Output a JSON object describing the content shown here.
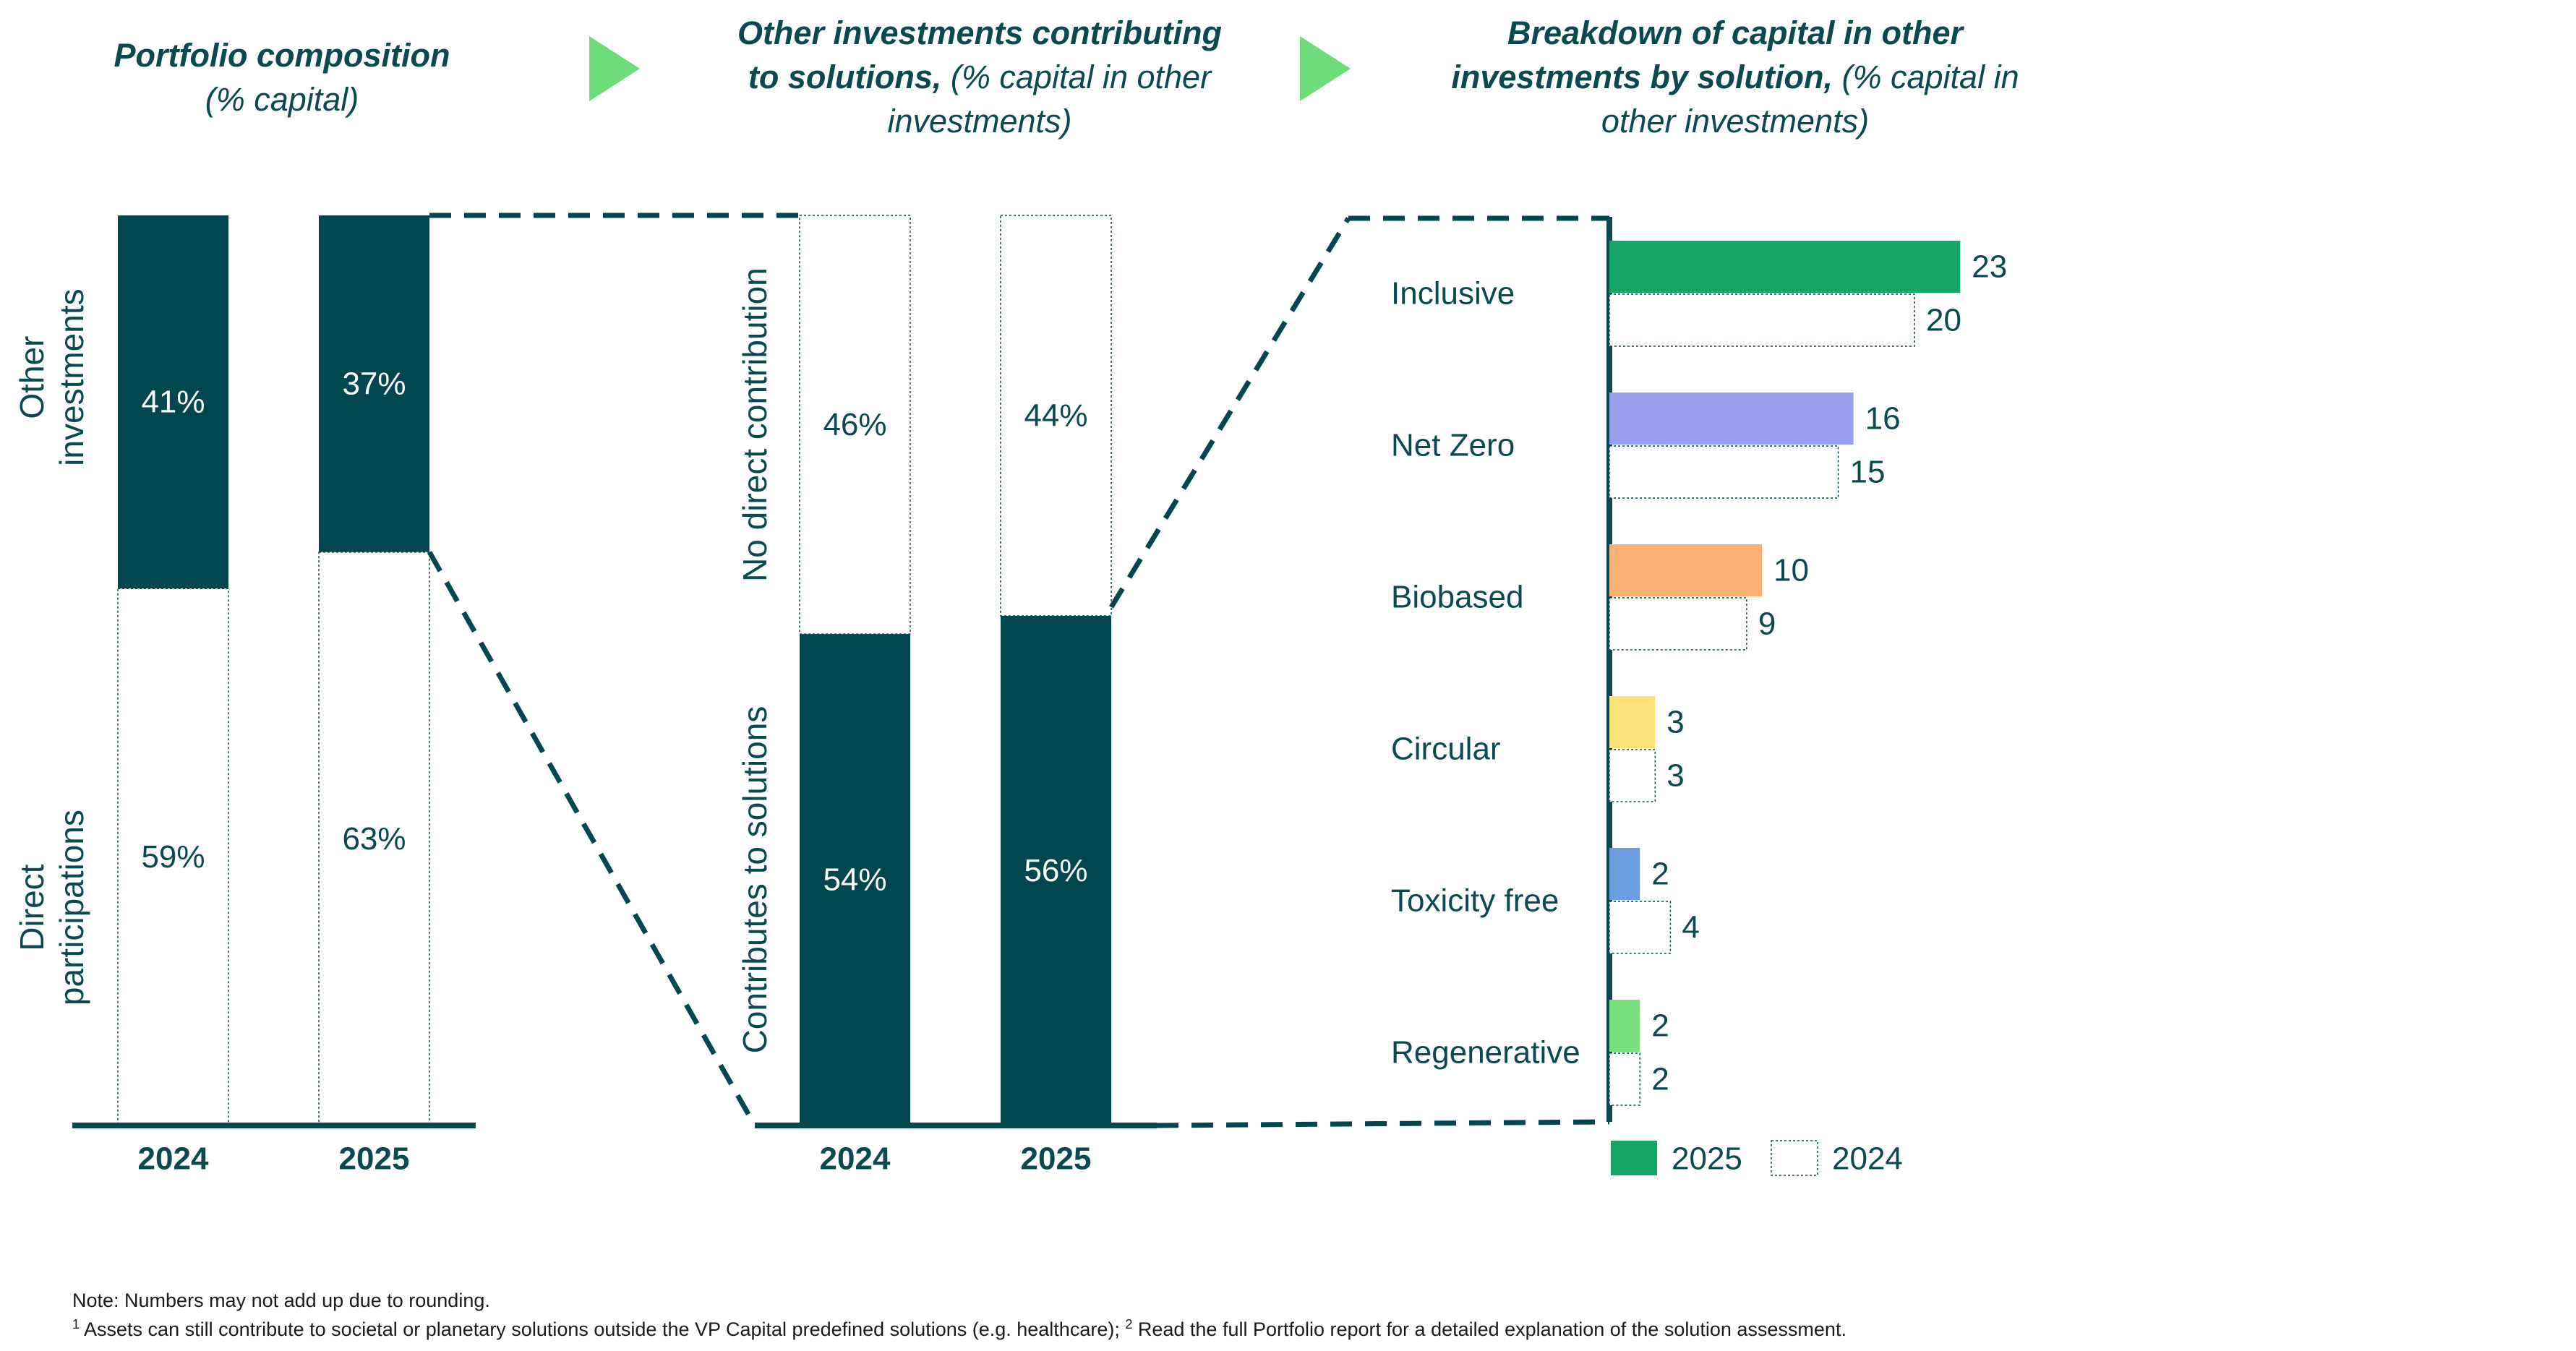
{
  "headers": {
    "portfolio": {
      "bold": "Portfolio composition",
      "sub": "(% capital)"
    },
    "other": {
      "bold1": "Other investments contributing",
      "bold2": "to solutions,",
      "sub1": " (% capital in other",
      "sub2": "investments)"
    },
    "breakdown": {
      "bold1": "Breakdown of capital in other",
      "bold2": "investments by solution,",
      "sub1": " (% capital in",
      "sub2": "other investments)"
    }
  },
  "colors": {
    "dark_teal": "#02464f",
    "axis": "#0a4a4f",
    "arrow": "#6fdc7c",
    "inclusive": "#15a566",
    "net_zero": "#9aa0f0",
    "biobased": "#fdb174",
    "circular": "#fde277",
    "toxicity_free": "#6b9ee0",
    "regenerative": "#78e07e"
  },
  "chart_data": [
    {
      "type": "bar",
      "stacked": true,
      "categories": [
        "2024",
        "2025"
      ],
      "series": [
        {
          "name": "Direct participations",
          "labels": [
            "Direct",
            "participations"
          ],
          "values": [
            59,
            63
          ],
          "value_labels": [
            "59%",
            "63%"
          ]
        },
        {
          "name": "Other investments",
          "labels": [
            "Other",
            "investments"
          ],
          "values": [
            41,
            37
          ],
          "value_labels": [
            "41%",
            "37%"
          ]
        }
      ],
      "ylim": [
        0,
        100
      ]
    },
    {
      "type": "bar",
      "stacked": true,
      "categories": [
        "2024",
        "2025"
      ],
      "series": [
        {
          "name": "Contributes to solutions",
          "values": [
            54,
            56
          ],
          "value_labels": [
            "54%",
            "56%"
          ]
        },
        {
          "name": "No direct contribution",
          "values": [
            46,
            44
          ],
          "value_labels": [
            "46%",
            "44%"
          ]
        }
      ],
      "ylim": [
        0,
        100
      ]
    },
    {
      "type": "bar",
      "orientation": "horizontal",
      "categories": [
        "Inclusive",
        "Net Zero",
        "Biobased",
        "Circular",
        "Toxicity free",
        "Regenerative"
      ],
      "series": [
        {
          "name": "2025",
          "values": [
            23,
            16,
            10,
            3,
            2,
            2
          ]
        },
        {
          "name": "2024",
          "values": [
            20,
            15,
            9,
            3,
            4,
            2
          ]
        }
      ],
      "legend": {
        "position": "bottom-left",
        "labels": [
          "2025",
          "2024"
        ]
      }
    }
  ],
  "footnotes": {
    "note": "Note: Numbers may not add up due to rounding.",
    "sup1": "1",
    "text1": " Assets can still contribute to societal or planetary solutions outside the VP Capital predefined solutions (e.g. healthcare); ",
    "sup2": "2",
    "text2": " Read the full Portfolio report for a detailed explanation of the solution assessment."
  }
}
